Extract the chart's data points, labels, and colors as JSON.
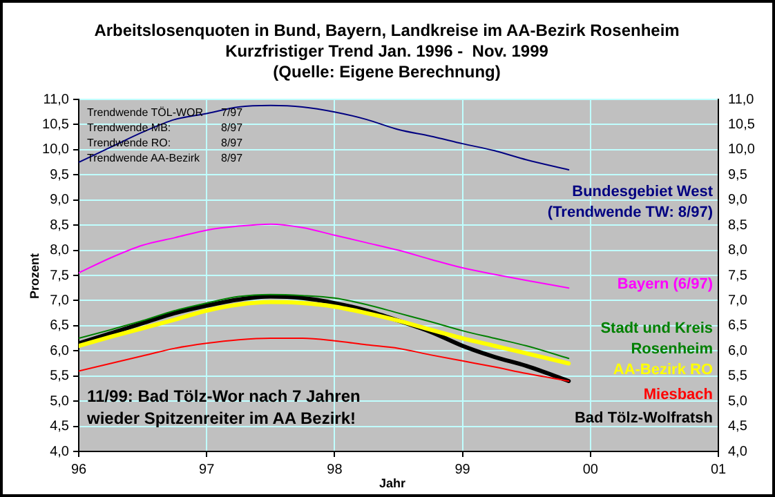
{
  "chart_data": {
    "type": "line",
    "title": "Arbeitslosenquoten in Bund, Bayern, Landkreise im AA-Bezirk Rosenheim",
    "subtitle": "Kurzfristiger Trend Jan. 1996 -  Nov. 1999",
    "xlabel": "Jahr",
    "ylabel": "Prozent",
    "annotations": [
      "(Quelle: Eigene Berechnung)",
      "Trendwende TÖL-WOR 7/97",
      "Trendwende MB: 8/97",
      "Trendwende RO: 8/97",
      "Trendwende AA-Bezirk 8/97",
      "11/99: Bad Tölz-Wor nach 7 Jahren wieder Spitzenreiter im AA Bezirk!"
    ],
    "x": [
      1996,
      1996.25,
      1996.5,
      1996.75,
      1997,
      1997.25,
      1997.5,
      1997.75,
      1998,
      1998.25,
      1998.5,
      1998.75,
      1999,
      1999.25,
      1999.5,
      1999.83
    ],
    "series": [
      {
        "name": "Bundesgebiet West (Trendwende TW: 8/97)",
        "color": "#000080",
        "values": [
          9.75,
          10.05,
          10.35,
          10.6,
          10.72,
          10.85,
          10.88,
          10.85,
          10.75,
          10.6,
          10.4,
          10.27,
          10.12,
          9.98,
          9.8,
          9.6
        ]
      },
      {
        "name": "Bayern (6/97)",
        "color": "#ff00ff",
        "values": [
          7.55,
          7.85,
          8.1,
          8.25,
          8.4,
          8.48,
          8.52,
          8.45,
          8.3,
          8.15,
          8.0,
          7.82,
          7.65,
          7.52,
          7.4,
          7.25
        ]
      },
      {
        "name": "Stadt und Kreis Rosenheim",
        "color": "#008000",
        "values": [
          6.25,
          6.42,
          6.6,
          6.8,
          6.95,
          7.08,
          7.12,
          7.1,
          7.05,
          6.92,
          6.75,
          6.58,
          6.4,
          6.25,
          6.1,
          5.85
        ]
      },
      {
        "name": "AA-Bezirk RO",
        "color": "#ffff00",
        "values": [
          6.1,
          6.28,
          6.45,
          6.62,
          6.8,
          6.92,
          6.97,
          6.95,
          6.88,
          6.75,
          6.6,
          6.42,
          6.25,
          6.1,
          5.95,
          5.75
        ]
      },
      {
        "name": "Miesbach",
        "color": "#ff0000",
        "values": [
          5.6,
          5.75,
          5.9,
          6.05,
          6.15,
          6.22,
          6.25,
          6.25,
          6.2,
          6.12,
          6.05,
          5.92,
          5.8,
          5.68,
          5.55,
          5.4
        ]
      },
      {
        "name": "Bad Tölz-Wolfratsh",
        "color": "#000000",
        "values": [
          6.15,
          6.35,
          6.55,
          6.75,
          6.9,
          7.02,
          7.08,
          7.05,
          6.95,
          6.8,
          6.6,
          6.38,
          6.1,
          5.88,
          5.7,
          5.4
        ]
      }
    ],
    "xlim": [
      1996,
      2001
    ],
    "xticks": [
      {
        "value": 1996,
        "label": "96"
      },
      {
        "value": 1997,
        "label": "97"
      },
      {
        "value": 1998,
        "label": "98"
      },
      {
        "value": 1999,
        "label": "99"
      },
      {
        "value": 2000,
        "label": "00"
      },
      {
        "value": 2001,
        "label": "01"
      }
    ],
    "ylim": [
      4,
      11
    ],
    "yticks": [
      {
        "value": 4,
        "label": "4,0"
      },
      {
        "value": 4.5,
        "label": "4,5"
      },
      {
        "value": 5,
        "label": "5,0"
      },
      {
        "value": 5.5,
        "label": "5,5"
      },
      {
        "value": 6,
        "label": "6,0"
      },
      {
        "value": 6.5,
        "label": "6,5"
      },
      {
        "value": 7,
        "label": "7,0"
      },
      {
        "value": 7.5,
        "label": "7,5"
      },
      {
        "value": 8,
        "label": "8,0"
      },
      {
        "value": 8.5,
        "label": "8,5"
      },
      {
        "value": 9,
        "label": "9,0"
      },
      {
        "value": 9.5,
        "label": "9,5"
      },
      {
        "value": 10,
        "label": "10,0"
      },
      {
        "value": 10.5,
        "label": "10,5"
      },
      {
        "value": 11,
        "label": "11,0"
      }
    ],
    "y2lim": [
      4,
      11
    ],
    "y2ticks": [
      {
        "value": 4,
        "label": "4,0"
      },
      {
        "value": 4.5,
        "label": "4,5"
      },
      {
        "value": 5,
        "label": "5,0"
      },
      {
        "value": 5.5,
        "label": "5,5"
      },
      {
        "value": 6,
        "label": "6,0"
      },
      {
        "value": 6.5,
        "label": "6,5"
      },
      {
        "value": 7,
        "label": "7,0"
      },
      {
        "value": 7.5,
        "label": "7,5"
      },
      {
        "value": 8,
        "label": "8,0"
      },
      {
        "value": 8.5,
        "label": "8,5"
      },
      {
        "value": 9,
        "label": "9,0"
      },
      {
        "value": 9.5,
        "label": "9,5"
      },
      {
        "value": 10,
        "label": "10,0"
      },
      {
        "value": 10.5,
        "label": "10,5"
      },
      {
        "value": 11,
        "label": "11,0"
      }
    ],
    "grid": true,
    "legend": false,
    "marker": "none",
    "line_style": "solid"
  }
}
